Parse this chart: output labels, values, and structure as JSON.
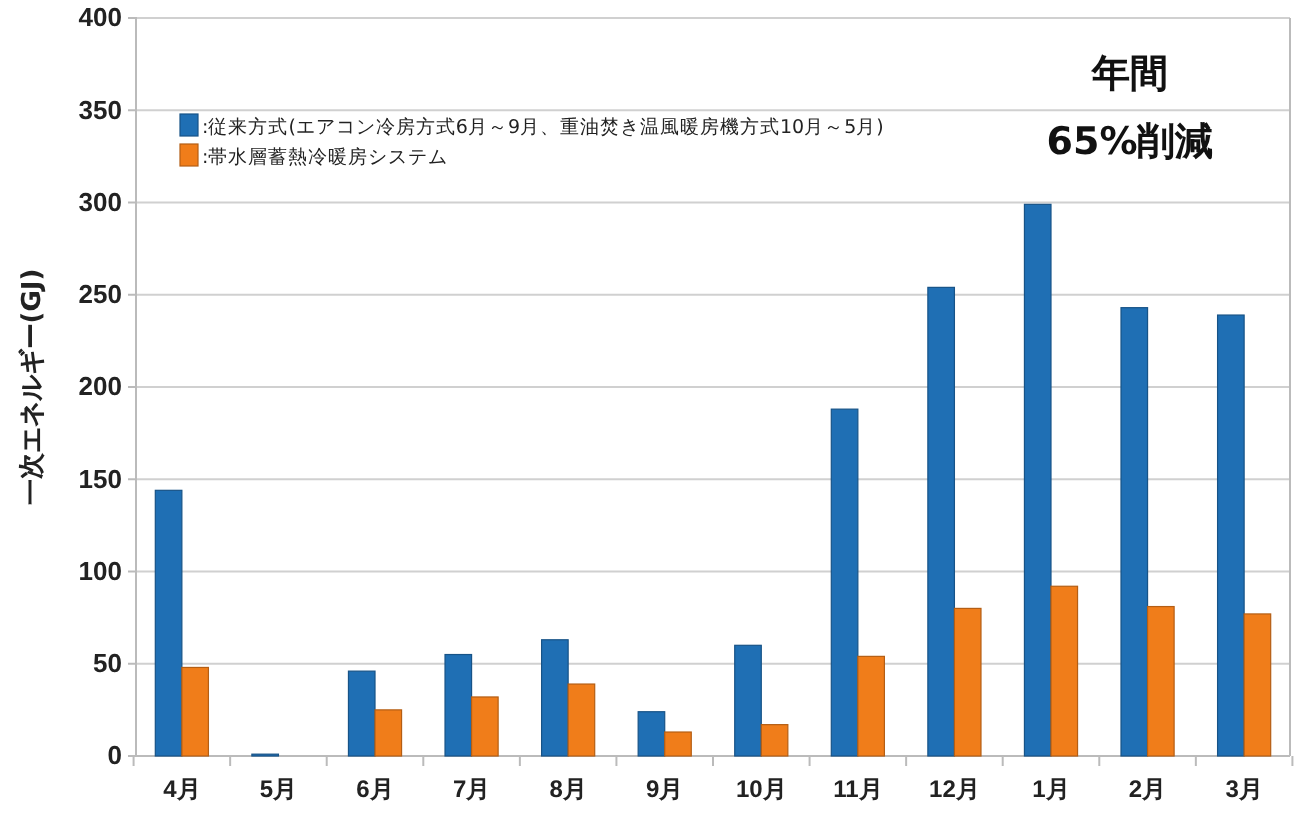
{
  "chart_data": {
    "type": "bar",
    "ylabel": "一次エネルギー(GJ)",
    "categories": [
      "4月",
      "5月",
      "6月",
      "7月",
      "8月",
      "9月",
      "10月",
      "11月",
      "12月",
      "1月",
      "2月",
      "3月"
    ],
    "series": [
      {
        "name": ":従来方式(エアコン冷房方式6月～9月、重油焚き温風暖房機方式10月～5月)",
        "color": "#1f6fb4",
        "values": [
          144,
          1,
          46,
          55,
          63,
          24,
          60,
          188,
          254,
          299,
          243,
          239
        ]
      },
      {
        "name": ":帯水層蓄熱冷暖房システム",
        "color": "#f07d1a",
        "values": [
          48,
          0,
          25,
          32,
          39,
          13,
          17,
          54,
          80,
          92,
          81,
          77
        ]
      }
    ],
    "ylim": [
      0,
      400
    ],
    "yticks": [
      0,
      50,
      100,
      150,
      200,
      250,
      300,
      350,
      400
    ],
    "grid": "y",
    "legend": "top left",
    "annotations": [
      "年間",
      "65%削減"
    ]
  }
}
